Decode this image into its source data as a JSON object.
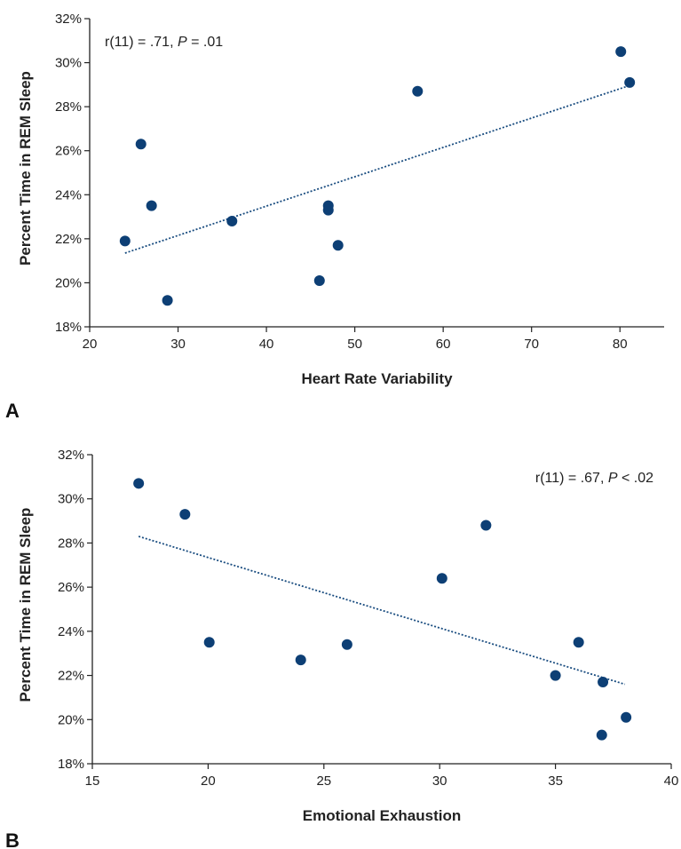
{
  "chart_data": [
    {
      "type": "scatter",
      "panel_label": "A",
      "xlabel": "Heart Rate Variability",
      "ylabel": "Percent Time in REM Sleep",
      "xlim": [
        20,
        85
      ],
      "ylim": [
        18,
        32
      ],
      "x_ticks": [
        20,
        30,
        40,
        50,
        60,
        70,
        80
      ],
      "y_ticks": [
        18,
        20,
        22,
        24,
        26,
        28,
        30,
        32
      ],
      "y_tick_suffix": "%",
      "annotation": {
        "pre": "r(11) = .71, ",
        "p": "P",
        "post": " = .01"
      },
      "annotation_position": "top-left",
      "point_color": "#0d3f75",
      "trend_color": "#1a4d80",
      "points": [
        {
          "x": 24,
          "y": 21.9
        },
        {
          "x": 25.8,
          "y": 26.3
        },
        {
          "x": 27,
          "y": 23.5
        },
        {
          "x": 28.8,
          "y": 19.2
        },
        {
          "x": 36.1,
          "y": 22.8
        },
        {
          "x": 46,
          "y": 20.1
        },
        {
          "x": 47,
          "y": 23.5
        },
        {
          "x": 47,
          "y": 23.3
        },
        {
          "x": 48.1,
          "y": 21.7
        },
        {
          "x": 57.1,
          "y": 28.7
        },
        {
          "x": 80.1,
          "y": 30.5
        },
        {
          "x": 81.1,
          "y": 29.1
        }
      ],
      "trendline": {
        "x": [
          24,
          81
        ],
        "y": [
          21.35,
          28.95
        ]
      }
    },
    {
      "type": "scatter",
      "panel_label": "B",
      "xlabel": "Emotional Exhaustion",
      "ylabel": "Percent Time in REM Sleep",
      "xlim": [
        15,
        40
      ],
      "ylim": [
        18,
        32
      ],
      "x_ticks": [
        15,
        20,
        25,
        30,
        35,
        40
      ],
      "y_ticks": [
        18,
        20,
        22,
        24,
        26,
        28,
        30,
        32
      ],
      "y_tick_suffix": "%",
      "annotation": {
        "pre": "r(11) = .67, ",
        "p": "P",
        "post": " < .02"
      },
      "annotation_position": "top-right",
      "point_color": "#0d3f75",
      "trend_color": "#1a4d80",
      "points": [
        {
          "x": 17,
          "y": 30.7
        },
        {
          "x": 19,
          "y": 29.3
        },
        {
          "x": 20.05,
          "y": 23.5
        },
        {
          "x": 24,
          "y": 22.7
        },
        {
          "x": 26,
          "y": 23.4
        },
        {
          "x": 30.1,
          "y": 26.4
        },
        {
          "x": 32,
          "y": 28.8
        },
        {
          "x": 35,
          "y": 22
        },
        {
          "x": 36,
          "y": 23.5
        },
        {
          "x": 37.05,
          "y": 21.7
        },
        {
          "x": 37,
          "y": 19.3
        },
        {
          "x": 38.05,
          "y": 20.1
        }
      ],
      "trendline": {
        "x": [
          17,
          38
        ],
        "y": [
          28.3,
          21.6
        ]
      }
    }
  ]
}
